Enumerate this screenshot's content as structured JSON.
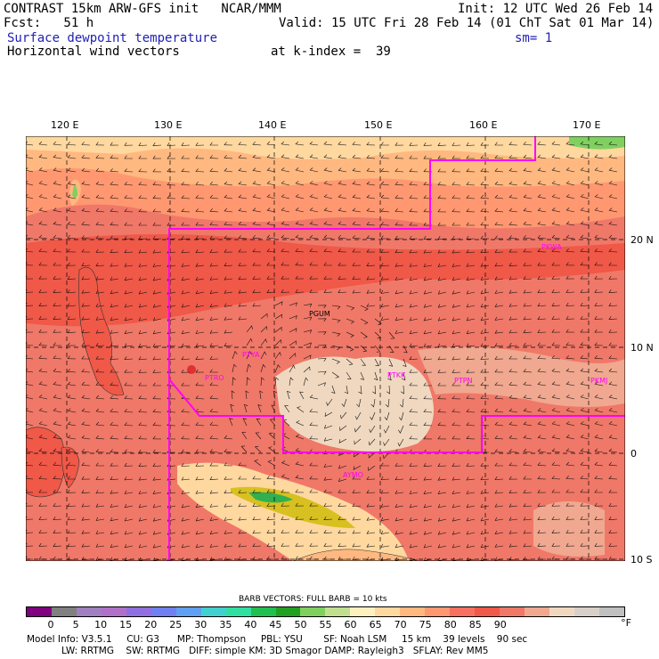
{
  "header": {
    "line1_left": "CONTRAST 15km ARW-GFS init   NCAR/MMM",
    "line1_right": "Init: 12 UTC Wed 26 Feb 14",
    "line2_left": "Fcst:   51 h",
    "line2_right": "Valid: 15 UTC Fri 28 Feb 14 (01 ChT Sat 01 Mar 14)",
    "line3_left": "Surface dewpoint temperature",
    "line3_right": "sm= 1",
    "line4_left": "Horizontal wind vectors",
    "line4_mid": "at k-index =  39"
  },
  "axes": {
    "lon_labels": [
      "120 E",
      "130 E",
      "140 E",
      "150 E",
      "160 E",
      "170 E"
    ],
    "lat_labels": [
      "20 N",
      "10 N",
      "0",
      "10 S"
    ]
  },
  "stations": [
    {
      "code": "PGUM",
      "color": "#000000"
    },
    {
      "code": "PTYA",
      "color": "#ff00ff"
    },
    {
      "code": "PTRO",
      "color": "#ff00ff"
    },
    {
      "code": "PTKK",
      "color": "#ff00ff"
    },
    {
      "code": "PTPN",
      "color": "#ff00ff"
    },
    {
      "code": "PKMJ",
      "color": "#ff00ff"
    },
    {
      "code": "PKWA",
      "color": "#ff00ff"
    },
    {
      "code": "AYMO",
      "color": "#ff00ff"
    }
  ],
  "barb": {
    "title": "BARB VECTORS:  FULL BARB = 10 kts"
  },
  "colorbar": {
    "colors": [
      "#800080",
      "#808080",
      "#a080c0",
      "#b070c8",
      "#9070e0",
      "#7080f0",
      "#60a0f0",
      "#40d0d0",
      "#30e0a0",
      "#20c050",
      "#20a020",
      "#80d060",
      "#c0e090",
      "#fff0c0",
      "#ffd8a0",
      "#ffb880",
      "#ff9870",
      "#f87060",
      "#f05848",
      "#f07868",
      "#f0a890",
      "#f0d8c0",
      "#d8d0c8",
      "#c0c0c0"
    ],
    "labels": [
      "0",
      "5",
      "10",
      "15",
      "20",
      "25",
      "30",
      "35",
      "40",
      "45",
      "50",
      "55",
      "60",
      "65",
      "70",
      "75",
      "80",
      "85",
      "90"
    ],
    "unit": "°F"
  },
  "model_info": {
    "line1": "Model Info: V3.5.1     CU: G3      MP: Thompson     PBL: YSU       SF: Noah LSM     15 km    39 levels    90 sec",
    "line2": "LW: RRTMG    SW: RRTMG   DIFF: simple KM: 3D Smagor DAMP: Rayleigh3   SFLAY: Rev MM5"
  }
}
